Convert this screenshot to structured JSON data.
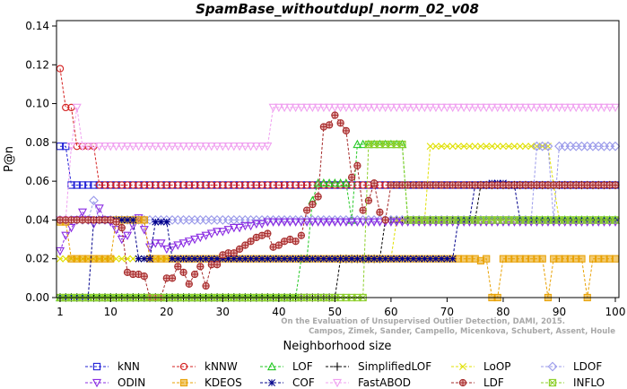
{
  "chart_data": {
    "type": "line",
    "title": "SpamBase_withoutdupl_norm_02_v08",
    "xlabel": "Neighborhood size",
    "ylabel": "P@n",
    "xlim": [
      0,
      100
    ],
    "ylim": [
      0,
      0.14
    ],
    "xticks": [
      1,
      10,
      20,
      30,
      40,
      50,
      60,
      70,
      80,
      90,
      100
    ],
    "yticks": [
      0.0,
      0.02,
      0.04,
      0.06,
      0.08,
      0.1,
      0.12,
      0.14
    ],
    "ytick_labels": [
      "0.00",
      "0.02",
      "0.04",
      "0.06",
      "0.08",
      "0.10",
      "0.12",
      "0.14"
    ],
    "grid": false,
    "legend_position": "bottom",
    "watermark": [
      "Campos, Zimek, Sander, Campello, Micenkova, Schubert, Assent, Houle",
      "On the Evaluation of Unsupervised Outlier Detection, DAMI, 2015."
    ],
    "series": [
      {
        "name": "kNN",
        "color": "#1f1fd6",
        "marker": "square",
        "points": [
          [
            1,
            0.078
          ],
          [
            2,
            0.078
          ],
          [
            3,
            0.058
          ],
          [
            100,
            0.058
          ]
        ]
      },
      {
        "name": "kNNW",
        "color": "#d42020",
        "marker": "circle",
        "points": [
          [
            1,
            0.118
          ],
          [
            2,
            0.098
          ],
          [
            3,
            0.098
          ],
          [
            4,
            0.078
          ],
          [
            5,
            0.078
          ],
          [
            6,
            0.078
          ],
          [
            7,
            0.078
          ],
          [
            8,
            0.058
          ],
          [
            100,
            0.058
          ]
        ]
      },
      {
        "name": "LOF",
        "color": "#22c822",
        "marker": "triangle-up",
        "points": [
          [
            1,
            0
          ],
          [
            43,
            0
          ],
          [
            44,
            0.02
          ],
          [
            45,
            0.02
          ],
          [
            46,
            0.05
          ],
          [
            47,
            0.059
          ],
          [
            52,
            0.059
          ],
          [
            53,
            0.04
          ],
          [
            54,
            0.079
          ],
          [
            55,
            0.079
          ],
          [
            62,
            0.079
          ],
          [
            63,
            0.04
          ],
          [
            100,
            0.04
          ]
        ]
      },
      {
        "name": "SimplifiedLOF",
        "color": "#000000",
        "marker": "plus",
        "points": [
          [
            1,
            0
          ],
          [
            50,
            0
          ],
          [
            51,
            0.02
          ],
          [
            52,
            0.02
          ],
          [
            53,
            0.02
          ],
          [
            58,
            0.02
          ],
          [
            59,
            0.04
          ],
          [
            75,
            0.04
          ],
          [
            76,
            0.058
          ],
          [
            100,
            0.058
          ]
        ]
      },
      {
        "name": "LoOP",
        "color": "#e0e000",
        "marker": "x",
        "points": [
          [
            1,
            0.02
          ],
          [
            60,
            0.02
          ],
          [
            61,
            0.04
          ],
          [
            66,
            0.04
          ],
          [
            67,
            0.078
          ],
          [
            88,
            0.078
          ],
          [
            89,
            0.058
          ],
          [
            90,
            0.04
          ],
          [
            100,
            0.04
          ]
        ]
      },
      {
        "name": "LDOF",
        "color": "#9a9aea",
        "marker": "diamond",
        "points": [
          [
            1,
            0.04
          ],
          [
            6,
            0.04
          ],
          [
            7,
            0.05
          ],
          [
            8,
            0.04
          ],
          [
            85,
            0.04
          ],
          [
            86,
            0.078
          ],
          [
            88,
            0.078
          ],
          [
            89,
            0.04
          ],
          [
            90,
            0.078
          ],
          [
            100,
            0.078
          ]
        ]
      },
      {
        "name": "ODIN",
        "color": "#8a2be2",
        "marker": "triangle-down",
        "points": [
          [
            1,
            0.024
          ],
          [
            2,
            0.032
          ],
          [
            3,
            0.036
          ],
          [
            4,
            0.04
          ],
          [
            5,
            0.044
          ],
          [
            6,
            0.04
          ],
          [
            7,
            0.038
          ],
          [
            8,
            0.046
          ],
          [
            9,
            0.04
          ],
          [
            10,
            0.039
          ],
          [
            11,
            0.035
          ],
          [
            12,
            0.03
          ],
          [
            13,
            0.032
          ],
          [
            14,
            0.037
          ],
          [
            15,
            0.041
          ],
          [
            16,
            0.035
          ],
          [
            17,
            0.026
          ],
          [
            18,
            0.028
          ],
          [
            19,
            0.028
          ],
          [
            20,
            0.025
          ],
          [
            21,
            0.026
          ],
          [
            22,
            0.027
          ],
          [
            23,
            0.028
          ],
          [
            24,
            0.029
          ],
          [
            25,
            0.03
          ],
          [
            26,
            0.031
          ],
          [
            27,
            0.032
          ],
          [
            28,
            0.033
          ],
          [
            29,
            0.034
          ],
          [
            30,
            0.034
          ],
          [
            31,
            0.035
          ],
          [
            32,
            0.036
          ],
          [
            33,
            0.036
          ],
          [
            34,
            0.037
          ],
          [
            35,
            0.037
          ],
          [
            36,
            0.038
          ],
          [
            37,
            0.038
          ],
          [
            38,
            0.039
          ],
          [
            39,
            0.039
          ],
          [
            100,
            0.039
          ]
        ]
      },
      {
        "name": "KDEOS",
        "color": "#e8a000",
        "marker": "square-filled",
        "points": [
          [
            1,
            0.039
          ],
          [
            2,
            0.039
          ],
          [
            3,
            0.02
          ],
          [
            10,
            0.02
          ],
          [
            11,
            0.04
          ],
          [
            16,
            0.04
          ],
          [
            17,
            0.02
          ],
          [
            75,
            0.02
          ],
          [
            76,
            0.019
          ],
          [
            77,
            0.02
          ],
          [
            78,
            0.0
          ],
          [
            79,
            0.0
          ],
          [
            80,
            0.02
          ],
          [
            83,
            0.02
          ],
          [
            84,
            0.02
          ],
          [
            87,
            0.02
          ],
          [
            88,
            0.0
          ],
          [
            89,
            0.02
          ],
          [
            93,
            0.02
          ],
          [
            95,
            0.0
          ],
          [
            96,
            0.02
          ],
          [
            97,
            0.02
          ],
          [
            100,
            0.02
          ]
        ]
      },
      {
        "name": "COF",
        "color": "#00008b",
        "marker": "asterisk",
        "points": [
          [
            1,
            0
          ],
          [
            6,
            0
          ],
          [
            7,
            0.04
          ],
          [
            14,
            0.04
          ],
          [
            15,
            0.02
          ],
          [
            17,
            0.02
          ],
          [
            18,
            0.039
          ],
          [
            20,
            0.039
          ],
          [
            21,
            0.02
          ],
          [
            52,
            0.02
          ],
          [
            53,
            0.02
          ],
          [
            60,
            0.02
          ],
          [
            61,
            0.02
          ],
          [
            71,
            0.02
          ],
          [
            72,
            0.04
          ],
          [
            74,
            0.04
          ],
          [
            75,
            0.058
          ],
          [
            77,
            0.058
          ],
          [
            78,
            0.059
          ],
          [
            80,
            0.059
          ],
          [
            81,
            0.058
          ],
          [
            82,
            0.058
          ],
          [
            83,
            0.04
          ],
          [
            100,
            0.04
          ]
        ]
      },
      {
        "name": "FastABOD",
        "color": "#f0a0f0",
        "marker": "triangle-down",
        "points": [
          [
            1,
            0.04
          ],
          [
            2,
            0.04
          ],
          [
            3,
            0.078
          ],
          [
            4,
            0.098
          ],
          [
            5,
            0.078
          ],
          [
            38,
            0.078
          ],
          [
            39,
            0.098
          ],
          [
            100,
            0.098
          ]
        ]
      },
      {
        "name": "LDF",
        "color": "#a52a2a",
        "marker": "circle-plus",
        "points": [
          [
            1,
            0.04
          ],
          [
            2,
            0.04
          ],
          [
            10,
            0.04
          ],
          [
            11,
            0.039
          ],
          [
            12,
            0.036
          ],
          [
            13,
            0.013
          ],
          [
            14,
            0.012
          ],
          [
            15,
            0.012
          ],
          [
            16,
            0.011
          ],
          [
            17,
            0.0
          ],
          [
            18,
            0.0
          ],
          [
            19,
            0.0
          ],
          [
            20,
            0.01
          ],
          [
            21,
            0.01
          ],
          [
            22,
            0.016
          ],
          [
            23,
            0.013
          ],
          [
            24,
            0.007
          ],
          [
            25,
            0.012
          ],
          [
            26,
            0.016
          ],
          [
            27,
            0.006
          ],
          [
            28,
            0.017
          ],
          [
            29,
            0.017
          ],
          [
            30,
            0.022
          ],
          [
            31,
            0.023
          ],
          [
            32,
            0.023
          ],
          [
            33,
            0.025
          ],
          [
            34,
            0.027
          ],
          [
            35,
            0.029
          ],
          [
            36,
            0.031
          ],
          [
            37,
            0.032
          ],
          [
            38,
            0.033
          ],
          [
            39,
            0.026
          ],
          [
            40,
            0.027
          ],
          [
            41,
            0.029
          ],
          [
            42,
            0.03
          ],
          [
            43,
            0.029
          ],
          [
            44,
            0.032
          ],
          [
            45,
            0.045
          ],
          [
            46,
            0.048
          ],
          [
            47,
            0.052
          ],
          [
            48,
            0.088
          ],
          [
            49,
            0.089
          ],
          [
            50,
            0.094
          ],
          [
            51,
            0.09
          ],
          [
            52,
            0.086
          ],
          [
            53,
            0.062
          ],
          [
            54,
            0.068
          ],
          [
            55,
            0.045
          ],
          [
            56,
            0.05
          ],
          [
            57,
            0.059
          ],
          [
            58,
            0.044
          ],
          [
            59,
            0.04
          ],
          [
            60,
            0.058
          ],
          [
            100,
            0.058
          ]
        ]
      },
      {
        "name": "INFLO",
        "color": "#8ccf2a",
        "marker": "square-x",
        "points": [
          [
            1,
            0
          ],
          [
            55,
            0
          ],
          [
            56,
            0.079
          ],
          [
            62,
            0.079
          ],
          [
            63,
            0.04
          ],
          [
            100,
            0.04
          ]
        ]
      }
    ]
  }
}
